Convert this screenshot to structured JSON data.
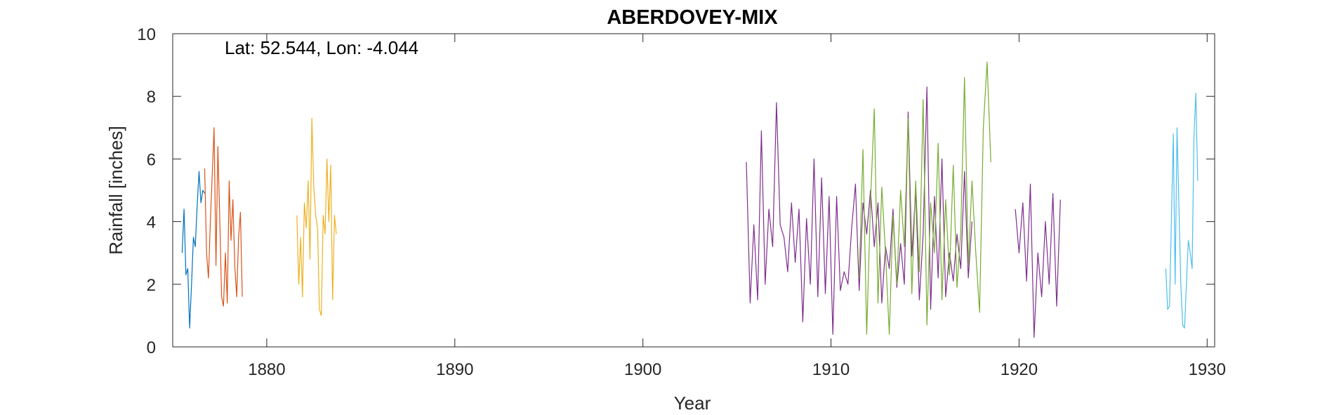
{
  "chart_data": {
    "type": "line",
    "title": "ABERDOVEY-MIX",
    "xlabel": "Year",
    "ylabel": "Rainfall [inches]",
    "annotation": "Lat: 52.544, Lon: -4.044",
    "xlim": [
      1875,
      1930.4
    ],
    "ylim": [
      0,
      10
    ],
    "xticks": [
      1880,
      1890,
      1900,
      1910,
      1920,
      1930
    ],
    "yticks": [
      0,
      2,
      4,
      6,
      8,
      10
    ],
    "grid": false,
    "series": [
      {
        "color": "#0072BD",
        "x": [
          1875.5,
          1875.6,
          1875.7,
          1875.8,
          1875.9,
          1876.0,
          1876.1,
          1876.2,
          1876.3,
          1876.4,
          1876.5,
          1876.6,
          1876.7
        ],
        "y": [
          3.0,
          4.4,
          2.3,
          2.5,
          0.6,
          2.0,
          3.5,
          3.2,
          4.5,
          5.6,
          4.6,
          5.0,
          4.9
        ]
      },
      {
        "color": "#D95319",
        "x": [
          1876.7,
          1876.8,
          1876.9,
          1877.0,
          1877.1,
          1877.2,
          1877.3,
          1877.4,
          1877.5,
          1877.6,
          1877.7,
          1877.8,
          1877.9,
          1878.0,
          1878.1,
          1878.2,
          1878.3,
          1878.4,
          1878.5,
          1878.6,
          1878.7
        ],
        "y": [
          5.7,
          3.0,
          2.2,
          4.0,
          5.5,
          7.0,
          2.6,
          6.4,
          4.1,
          1.6,
          1.3,
          3.0,
          1.4,
          5.3,
          3.4,
          4.7,
          2.6,
          1.6,
          3.5,
          4.3,
          1.6
        ]
      },
      {
        "color": "#EDB120",
        "x": [
          1881.6,
          1881.7,
          1881.8,
          1881.9,
          1882.0,
          1882.1,
          1882.2,
          1882.3,
          1882.4,
          1882.5,
          1882.6,
          1882.7,
          1882.8,
          1882.9,
          1883.0,
          1883.1,
          1883.2,
          1883.3,
          1883.4,
          1883.5,
          1883.6,
          1883.7
        ],
        "y": [
          4.2,
          2.0,
          3.5,
          1.6,
          4.6,
          3.8,
          5.3,
          2.8,
          7.3,
          5.1,
          4.2,
          3.8,
          1.2,
          1.0,
          4.2,
          3.6,
          6.0,
          4.0,
          5.8,
          1.5,
          4.2,
          3.6
        ]
      },
      {
        "color": "#7E2F8E",
        "x": [
          1905.5,
          1905.7,
          1905.9,
          1906.1,
          1906.3,
          1906.5,
          1906.7,
          1906.9,
          1907.1,
          1907.3,
          1907.5,
          1907.7,
          1907.9,
          1908.1,
          1908.3,
          1908.5,
          1908.7,
          1908.9,
          1909.1,
          1909.3,
          1909.5,
          1909.7,
          1909.9,
          1910.1,
          1910.3,
          1910.5,
          1910.7,
          1910.9,
          1911.1,
          1911.3,
          1911.5,
          1911.7,
          1911.9,
          1912.1,
          1912.3,
          1912.5,
          1912.7,
          1912.9,
          1913.1,
          1913.3,
          1913.5,
          1913.7,
          1913.9,
          1914.1,
          1914.3,
          1914.5,
          1914.7,
          1914.9,
          1915.1,
          1915.3,
          1915.5,
          1915.7,
          1915.9,
          1916.1,
          1916.3,
          1916.5,
          1916.7,
          1916.9,
          1917.1,
          1917.3,
          1917.5
        ],
        "y": [
          5.9,
          1.4,
          3.9,
          1.5,
          6.9,
          2.0,
          4.4,
          3.2,
          7.8,
          3.9,
          3.5,
          2.4,
          4.6,
          2.7,
          4.4,
          0.8,
          4.1,
          2.0,
          6.0,
          1.6,
          5.4,
          1.7,
          4.8,
          0.4,
          4.8,
          1.8,
          2.4,
          2.0,
          3.8,
          5.2,
          1.8,
          4.6,
          3.6,
          5.0,
          3.2,
          4.6,
          1.4,
          3.2,
          2.5,
          4.4,
          1.9,
          3.3,
          2.0,
          7.5,
          2.9,
          5.0,
          1.5,
          3.6,
          8.3,
          1.2,
          4.8,
          2.2,
          6.0,
          1.6,
          3.0,
          2.1,
          3.6,
          2.5,
          5.6,
          2.2,
          4.0
        ]
      },
      {
        "color": "#77AC30",
        "x": [
          1911.5,
          1911.7,
          1911.9,
          1912.1,
          1912.3,
          1912.5,
          1912.7,
          1912.9,
          1913.1,
          1913.3,
          1913.5,
          1913.7,
          1913.9,
          1914.1,
          1914.3,
          1914.5,
          1914.7,
          1914.9,
          1915.1,
          1915.3,
          1915.5,
          1915.7,
          1915.9,
          1916.1,
          1916.3,
          1916.5,
          1916.7,
          1916.9,
          1917.1,
          1917.3,
          1917.5,
          1917.7,
          1917.9,
          1918.1,
          1918.3,
          1918.5
        ],
        "y": [
          2.2,
          6.3,
          0.4,
          4.6,
          7.6,
          1.4,
          5.1,
          3.0,
          0.4,
          4.2,
          2.0,
          5.0,
          3.2,
          7.3,
          1.7,
          5.3,
          2.4,
          7.9,
          0.7,
          4.6,
          3.0,
          6.5,
          1.5,
          4.7,
          2.3,
          5.8,
          1.9,
          3.7,
          8.6,
          2.6,
          5.3,
          3.0,
          1.1,
          7.0,
          9.1,
          5.9
        ]
      },
      {
        "color": "#7E2F8E",
        "x": [
          1919.8,
          1920.0,
          1920.2,
          1920.4,
          1920.6,
          1920.8,
          1921.0,
          1921.2,
          1921.4,
          1921.6,
          1921.8,
          1922.0,
          1922.2
        ],
        "y": [
          4.4,
          3.0,
          4.6,
          2.1,
          5.2,
          0.3,
          3.0,
          1.6,
          4.0,
          2.0,
          4.9,
          1.3,
          4.7
        ]
      },
      {
        "color": "#4DBEEE",
        "x": [
          1927.8,
          1927.9,
          1928.0,
          1928.2,
          1928.3,
          1928.4,
          1928.6,
          1928.7,
          1928.8,
          1929.0,
          1929.1,
          1929.2,
          1929.3,
          1929.4,
          1929.5
        ],
        "y": [
          2.5,
          1.2,
          1.3,
          6.8,
          2.0,
          7.0,
          2.0,
          0.7,
          0.6,
          3.4,
          3.0,
          2.5,
          6.7,
          8.1,
          5.3
        ]
      }
    ]
  }
}
